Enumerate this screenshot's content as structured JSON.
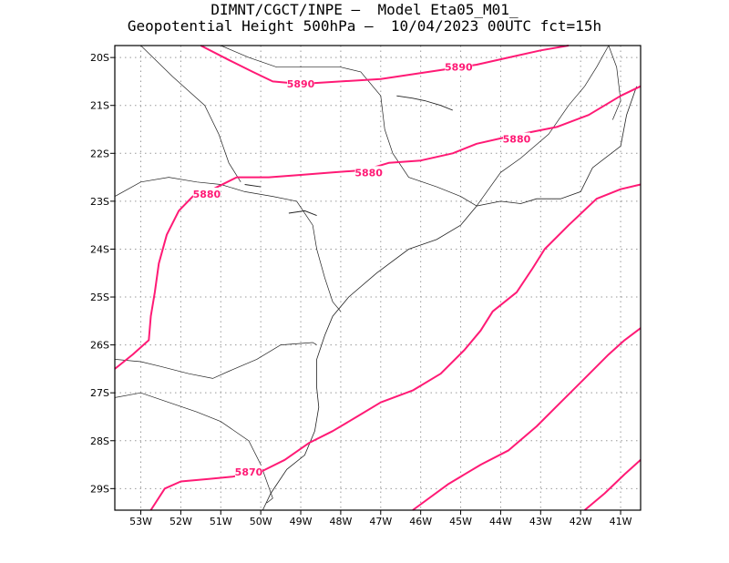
{
  "title": {
    "line1": "DIMNT/CGCT/INPE —  Model Eta05_M01_",
    "line2": "Geopotential Height 500hPa —  10/04/2023 00UTC fct=15h"
  },
  "map": {
    "lon_range": [
      -53.65,
      -40.5
    ],
    "lat_range": [
      -29.45,
      -19.75
    ],
    "x_ticks": [
      {
        "lon": -53,
        "label": "53W"
      },
      {
        "lon": -52,
        "label": "52W"
      },
      {
        "lon": -51,
        "label": "51W"
      },
      {
        "lon": -50,
        "label": "50W"
      },
      {
        "lon": -49,
        "label": "49W"
      },
      {
        "lon": -48,
        "label": "48W"
      },
      {
        "lon": -47,
        "label": "47W"
      },
      {
        "lon": -46,
        "label": "46W"
      },
      {
        "lon": -45,
        "label": "45W"
      },
      {
        "lon": -44,
        "label": "44W"
      },
      {
        "lon": -43,
        "label": "43W"
      },
      {
        "lon": -42,
        "label": "42W"
      },
      {
        "lon": -41,
        "label": "41W"
      }
    ],
    "y_ticks": [
      {
        "lat": -20,
        "label": "20S"
      },
      {
        "lat": -21,
        "label": "21S"
      },
      {
        "lat": -22,
        "label": "22S"
      },
      {
        "lat": -23,
        "label": "23S"
      },
      {
        "lat": -24,
        "label": "24S"
      },
      {
        "lat": -25,
        "label": "25S"
      },
      {
        "lat": -26,
        "label": "26S"
      },
      {
        "lat": -27,
        "label": "27S"
      },
      {
        "lat": -28,
        "label": "28S"
      },
      {
        "lat": -29,
        "label": "29S"
      }
    ],
    "grid": "dotted",
    "contour_color": "#ff1a75",
    "contours": [
      {
        "value": "5890",
        "labels": [
          {
            "lon": -49.0,
            "lat": -20.55,
            "text": "5890"
          },
          {
            "lon": -45.05,
            "lat": -20.2,
            "text": "5890"
          }
        ],
        "points": [
          [
            -51.5,
            -19.75
          ],
          [
            -50.8,
            -20.05
          ],
          [
            -50.2,
            -20.3
          ],
          [
            -49.7,
            -20.5
          ],
          [
            -49.0,
            -20.55
          ],
          [
            -48.0,
            -20.5
          ],
          [
            -47.0,
            -20.45
          ],
          [
            -46.2,
            -20.35
          ],
          [
            -45.4,
            -20.25
          ],
          [
            -44.6,
            -20.15
          ],
          [
            -43.8,
            -20.0
          ],
          [
            -43.0,
            -19.85
          ],
          [
            -42.3,
            -19.75
          ]
        ]
      },
      {
        "value": "5880",
        "labels": [
          {
            "lon": -51.35,
            "lat": -22.85,
            "text": "5880"
          },
          {
            "lon": -47.3,
            "lat": -22.4,
            "text": "5880"
          },
          {
            "lon": -43.6,
            "lat": -21.7,
            "text": "5880"
          }
        ],
        "points": [
          [
            -53.65,
            -26.5
          ],
          [
            -53.2,
            -26.2
          ],
          [
            -52.8,
            -25.9
          ],
          [
            -52.75,
            -25.4
          ],
          [
            -52.65,
            -24.9
          ],
          [
            -52.55,
            -24.3
          ],
          [
            -52.35,
            -23.7
          ],
          [
            -52.05,
            -23.2
          ],
          [
            -51.7,
            -22.9
          ],
          [
            -51.2,
            -22.75
          ],
          [
            -50.6,
            -22.5
          ],
          [
            -49.8,
            -22.5
          ],
          [
            -49.0,
            -22.45
          ],
          [
            -48.2,
            -22.4
          ],
          [
            -47.4,
            -22.35
          ],
          [
            -46.8,
            -22.2
          ],
          [
            -46.0,
            -22.15
          ],
          [
            -45.2,
            -22.0
          ],
          [
            -44.6,
            -21.8
          ],
          [
            -43.8,
            -21.65
          ],
          [
            -43.2,
            -21.55
          ],
          [
            -42.6,
            -21.45
          ],
          [
            -41.8,
            -21.2
          ],
          [
            -41.0,
            -20.8
          ],
          [
            -40.5,
            -20.6
          ]
        ]
      },
      {
        "value": "5870",
        "labels": [
          {
            "lon": -50.3,
            "lat": -28.65,
            "text": "5870"
          }
        ],
        "points": [
          [
            -52.75,
            -29.45
          ],
          [
            -52.4,
            -29.0
          ],
          [
            -52.0,
            -28.85
          ],
          [
            -51.3,
            -28.8
          ],
          [
            -50.7,
            -28.75
          ],
          [
            -50.0,
            -28.65
          ],
          [
            -49.4,
            -28.4
          ],
          [
            -48.8,
            -28.05
          ],
          [
            -48.2,
            -27.8
          ],
          [
            -47.6,
            -27.5
          ],
          [
            -47.0,
            -27.2
          ],
          [
            -46.2,
            -26.95
          ],
          [
            -45.5,
            -26.6
          ],
          [
            -44.9,
            -26.1
          ],
          [
            -44.5,
            -25.7
          ],
          [
            -44.2,
            -25.3
          ],
          [
            -43.6,
            -24.9
          ],
          [
            -43.2,
            -24.4
          ],
          [
            -42.9,
            -24.0
          ],
          [
            -42.3,
            -23.5
          ],
          [
            -41.6,
            -22.95
          ],
          [
            -41.0,
            -22.75
          ],
          [
            -40.5,
            -22.65
          ]
        ]
      },
      {
        "value": "",
        "labels": [],
        "points": [
          [
            -46.2,
            -29.45
          ],
          [
            -45.3,
            -28.9
          ],
          [
            -44.5,
            -28.5
          ],
          [
            -43.8,
            -28.2
          ],
          [
            -43.1,
            -27.7
          ],
          [
            -42.5,
            -27.2
          ],
          [
            -41.9,
            -26.7
          ],
          [
            -41.3,
            -26.2
          ],
          [
            -40.9,
            -25.9
          ],
          [
            -40.5,
            -25.65
          ]
        ]
      },
      {
        "value": "",
        "labels": [],
        "points": [
          [
            -41.9,
            -29.45
          ],
          [
            -41.4,
            -29.1
          ],
          [
            -40.9,
            -28.7
          ],
          [
            -40.5,
            -28.4
          ]
        ]
      }
    ],
    "coastline": [
      [
        -49.95,
        -29.45
      ],
      [
        -49.75,
        -29.1
      ],
      [
        -49.35,
        -28.6
      ],
      [
        -48.9,
        -28.3
      ],
      [
        -48.65,
        -27.8
      ],
      [
        -48.55,
        -27.3
      ],
      [
        -48.6,
        -26.9
      ],
      [
        -48.6,
        -26.3
      ],
      [
        -48.4,
        -25.8
      ],
      [
        -48.2,
        -25.4
      ],
      [
        -47.8,
        -25.0
      ],
      [
        -47.1,
        -24.5
      ],
      [
        -46.3,
        -24.0
      ],
      [
        -45.6,
        -23.8
      ],
      [
        -45.0,
        -23.5
      ],
      [
        -44.6,
        -23.1
      ],
      [
        -44.0,
        -23.0
      ],
      [
        -43.5,
        -23.05
      ],
      [
        -43.1,
        -22.95
      ],
      [
        -42.5,
        -22.95
      ],
      [
        -42.0,
        -22.8
      ],
      [
        -41.7,
        -22.3
      ],
      [
        -41.0,
        -21.85
      ],
      [
        -40.85,
        -21.2
      ],
      [
        -40.6,
        -20.6
      ]
    ],
    "borders": [
      [
        [
          -53.65,
          -22.9
        ],
        [
          -53.0,
          -22.6
        ],
        [
          -52.3,
          -22.5
        ],
        [
          -51.6,
          -22.6
        ],
        [
          -51.0,
          -22.65
        ],
        [
          -50.4,
          -22.8
        ],
        [
          -49.7,
          -22.9
        ],
        [
          -49.1,
          -23.0
        ],
        [
          -48.7,
          -23.5
        ],
        [
          -48.6,
          -24.0
        ],
        [
          -48.4,
          -24.6
        ],
        [
          -48.2,
          -25.1
        ],
        [
          -48.0,
          -25.3
        ]
      ],
      [
        [
          -53.65,
          -26.3
        ],
        [
          -53.0,
          -26.35
        ],
        [
          -52.5,
          -26.45
        ],
        [
          -51.8,
          -26.6
        ],
        [
          -51.2,
          -26.7
        ],
        [
          -50.8,
          -26.55
        ],
        [
          -50.1,
          -26.3
        ],
        [
          -49.5,
          -26.0
        ],
        [
          -48.7,
          -25.95
        ],
        [
          -48.6,
          -26.0
        ]
      ],
      [
        [
          -53.65,
          -27.1
        ],
        [
          -53.0,
          -27.0
        ],
        [
          -52.3,
          -27.2
        ],
        [
          -51.6,
          -27.4
        ],
        [
          -51.0,
          -27.6
        ],
        [
          -50.3,
          -28.0
        ],
        [
          -50.0,
          -28.5
        ],
        [
          -49.7,
          -29.2
        ],
        [
          -49.85,
          -29.3
        ]
      ],
      [
        [
          -53.0,
          -19.75
        ],
        [
          -52.2,
          -20.4
        ],
        [
          -51.4,
          -21.0
        ],
        [
          -51.05,
          -21.6
        ],
        [
          -50.8,
          -22.2
        ],
        [
          -50.5,
          -22.6
        ]
      ],
      [
        [
          -51.0,
          -19.75
        ],
        [
          -50.3,
          -20.0
        ],
        [
          -49.6,
          -20.2
        ],
        [
          -48.8,
          -20.2
        ],
        [
          -48.0,
          -20.2
        ],
        [
          -47.5,
          -20.3
        ],
        [
          -47.0,
          -20.8
        ],
        [
          -46.9,
          -21.5
        ],
        [
          -46.7,
          -22.0
        ],
        [
          -46.3,
          -22.5
        ],
        [
          -45.6,
          -22.7
        ],
        [
          -45.0,
          -22.9
        ],
        [
          -44.6,
          -23.1
        ]
      ],
      [
        [
          -44.6,
          -23.1
        ],
        [
          -44.0,
          -22.4
        ],
        [
          -43.5,
          -22.1
        ],
        [
          -42.8,
          -21.6
        ],
        [
          -42.3,
          -21.0
        ],
        [
          -41.9,
          -20.6
        ],
        [
          -41.6,
          -20.2
        ],
        [
          -41.3,
          -19.75
        ]
      ],
      [
        [
          -41.3,
          -19.75
        ],
        [
          -41.1,
          -20.2
        ],
        [
          -41.0,
          -20.9
        ],
        [
          -41.2,
          -21.3
        ]
      ]
    ],
    "reservoirs": [
      [
        [
          -46.6,
          -20.8
        ],
        [
          -46.2,
          -20.85
        ],
        [
          -45.9,
          -20.9
        ],
        [
          -45.5,
          -21.0
        ],
        [
          -45.2,
          -21.1
        ]
      ],
      [
        [
          -49.3,
          -23.25
        ],
        [
          -48.9,
          -23.2
        ],
        [
          -48.6,
          -23.3
        ]
      ],
      [
        [
          -50.4,
          -22.65
        ],
        [
          -50.0,
          -22.7
        ]
      ]
    ]
  }
}
